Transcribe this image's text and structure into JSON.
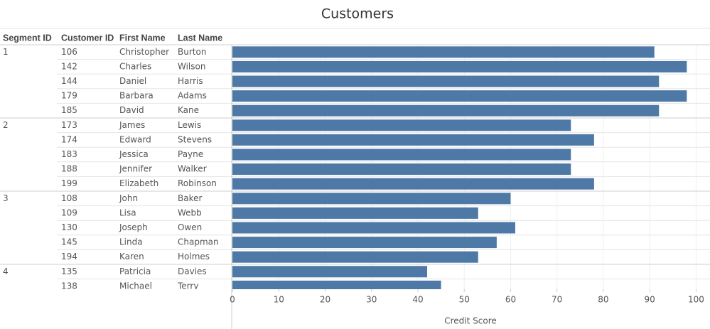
{
  "chart_data": {
    "type": "bar",
    "title": "Customers",
    "columns": [
      "Segment ID",
      "Customer ID",
      "First Name",
      "Last Name"
    ],
    "rows": [
      [
        "1",
        "106",
        "Christopher",
        "Burton"
      ],
      [
        null,
        "142",
        "Charles",
        "Wilson"
      ],
      [
        null,
        "144",
        "Daniel",
        "Harris"
      ],
      [
        null,
        "179",
        "Barbara",
        "Adams"
      ],
      [
        null,
        "185",
        "David",
        "Kane"
      ],
      [
        "2",
        "173",
        "James",
        "Lewis"
      ],
      [
        null,
        "174",
        "Edward",
        "Stevens"
      ],
      [
        null,
        "183",
        "Jessica",
        "Payne"
      ],
      [
        null,
        "188",
        "Jennifer",
        "Walker"
      ],
      [
        null,
        "199",
        "Elizabeth",
        "Robinson"
      ],
      [
        "3",
        "108",
        "John",
        "Baker"
      ],
      [
        null,
        "109",
        "Lisa",
        "Webb"
      ],
      [
        null,
        "130",
        "Joseph",
        "Owen"
      ],
      [
        null,
        "145",
        "Linda",
        "Chapman"
      ],
      [
        null,
        "194",
        "Karen",
        "Holmes"
      ],
      [
        "4",
        "135",
        "Patricia",
        "Davies"
      ],
      [
        null,
        "138",
        "Michael",
        "Terry"
      ]
    ],
    "values": [
      91,
      98,
      92,
      98,
      92,
      73,
      78,
      73,
      73,
      78,
      60,
      53,
      61,
      57,
      53,
      42,
      45
    ],
    "color": "#4e79a7",
    "xlabel": "Credit Score",
    "xlim": [
      0,
      103
    ],
    "xticks": [
      0,
      10,
      20,
      30,
      40,
      50,
      60,
      70,
      80,
      90,
      100
    ],
    "grid": true
  }
}
